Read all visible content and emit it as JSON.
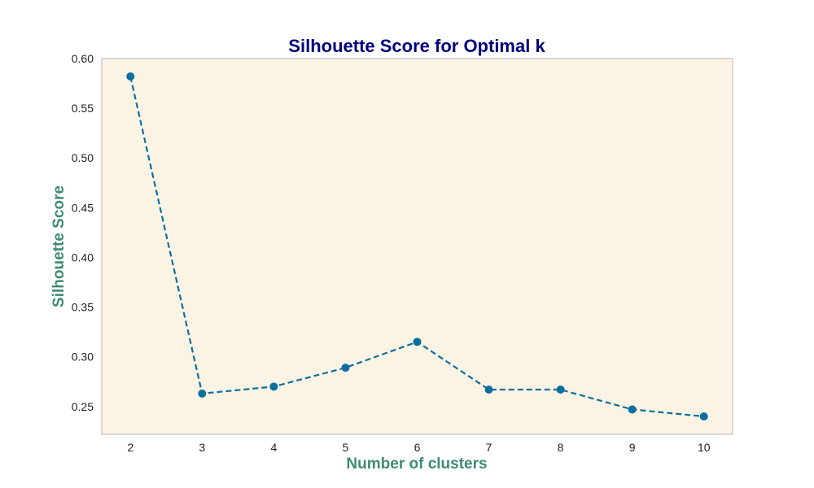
{
  "colors": {
    "plot_background": "#fbf4e4",
    "plot_border": "#cccccc",
    "title": "#00007f",
    "axis_label": "#3e8a74",
    "series": "#0b6fa0"
  },
  "chart_data": {
    "type": "line",
    "title": "Silhouette Score for Optimal k",
    "xlabel": "Number of clusters",
    "ylabel": "Silhouette Score",
    "x": [
      2,
      3,
      4,
      5,
      6,
      7,
      8,
      9,
      10
    ],
    "series": [
      {
        "values": [
          0.582,
          0.263,
          0.27,
          0.289,
          0.315,
          0.267,
          0.267,
          0.247,
          0.24
        ],
        "line_style": "dashed",
        "marker": "circle"
      }
    ],
    "xlim": [
      1.6,
      10.4
    ],
    "ylim": [
      0.222,
      0.6
    ],
    "xticks": [
      "2",
      "3",
      "4",
      "5",
      "6",
      "7",
      "8",
      "9",
      "10"
    ],
    "yticks": [
      "0.25",
      "0.30",
      "0.35",
      "0.40",
      "0.45",
      "0.50",
      "0.55",
      "0.60"
    ],
    "grid": false,
    "legend": false
  }
}
